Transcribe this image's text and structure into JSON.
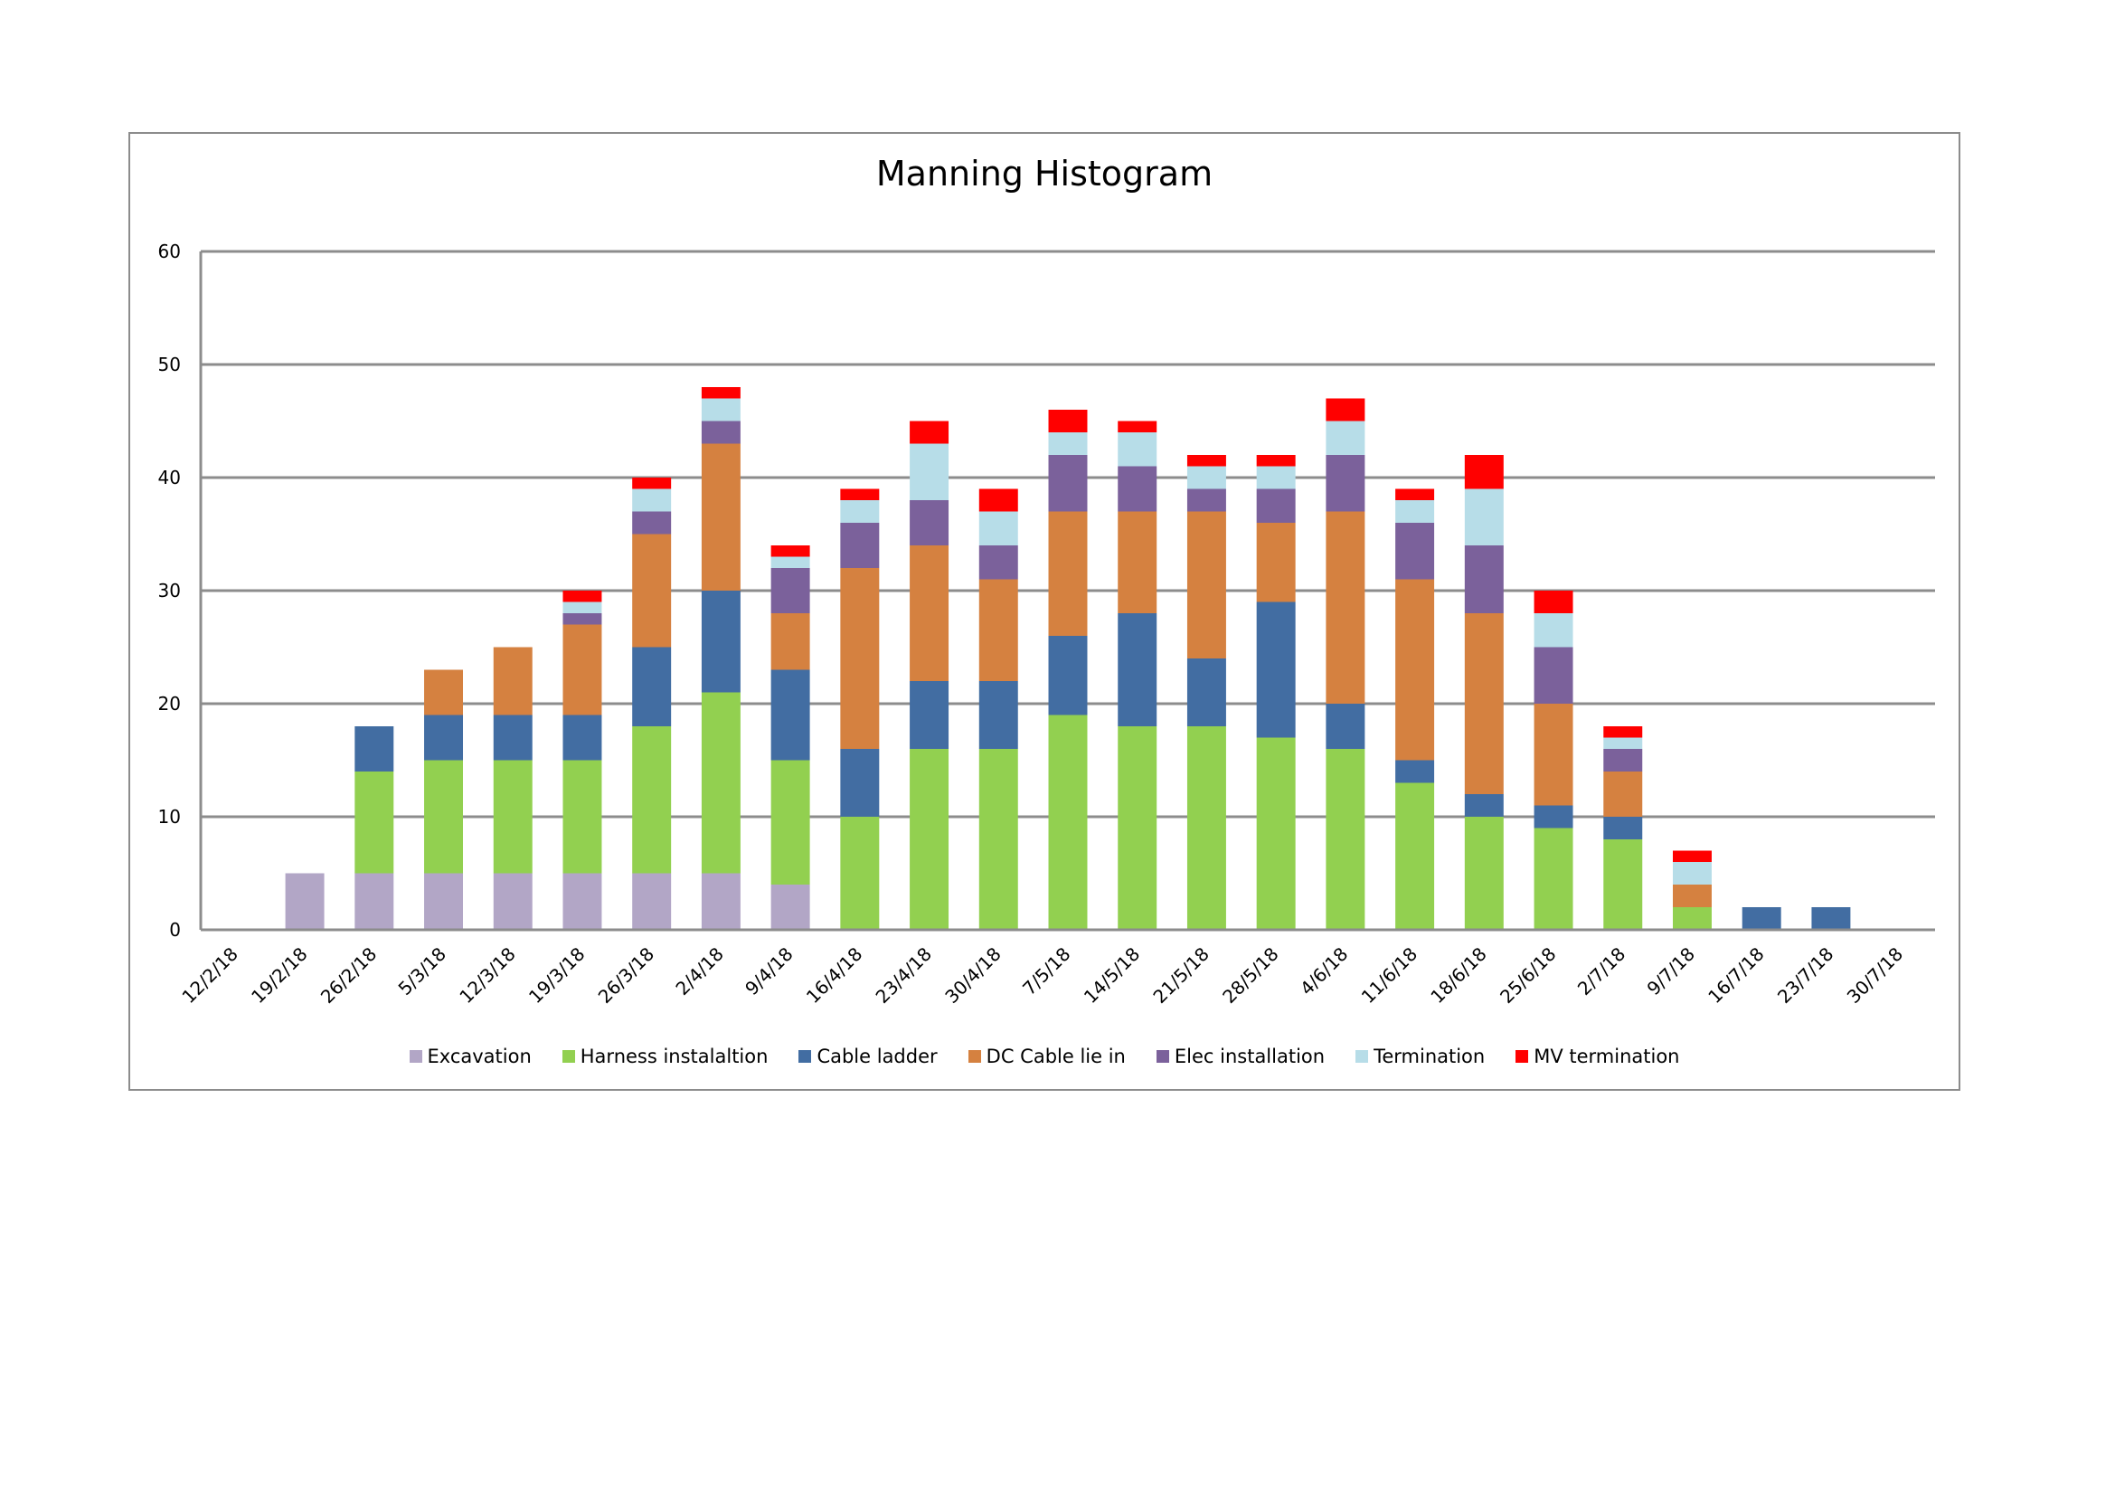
{
  "chart_data": {
    "type": "bar",
    "stacked": true,
    "title": "Manning Histogram",
    "xlabel": "",
    "ylabel": "",
    "ylim": [
      0,
      60
    ],
    "yticks": [
      0,
      10,
      20,
      30,
      40,
      50,
      60
    ],
    "grid": true,
    "legend_position": "bottom",
    "categories": [
      "12/2/18",
      "19/2/18",
      "26/2/18",
      "5/3/18",
      "12/3/18",
      "19/3/18",
      "26/3/18",
      "2/4/18",
      "9/4/18",
      "16/4/18",
      "23/4/18",
      "30/4/18",
      "7/5/18",
      "14/5/18",
      "21/5/18",
      "28/5/18",
      "4/6/18",
      "11/6/18",
      "18/6/18",
      "25/6/18",
      "2/7/18",
      "9/7/18",
      "16/7/18",
      "23/7/18",
      "30/7/18"
    ],
    "series": [
      {
        "name": "Excavation",
        "color": "#b2a6c6",
        "values": [
          0,
          5,
          5,
          5,
          5,
          5,
          5,
          5,
          4,
          0,
          0,
          0,
          0,
          0,
          0,
          0,
          0,
          0,
          0,
          0,
          0,
          0,
          0,
          0,
          0
        ]
      },
      {
        "name": "Harness instalaltion",
        "color": "#92d050",
        "values": [
          0,
          0,
          9,
          10,
          10,
          10,
          13,
          16,
          11,
          10,
          16,
          16,
          19,
          18,
          18,
          17,
          16,
          13,
          10,
          9,
          8,
          2,
          0,
          0,
          0
        ]
      },
      {
        "name": "Cable ladder",
        "color": "#426da2",
        "values": [
          0,
          0,
          4,
          4,
          4,
          4,
          7,
          9,
          8,
          6,
          6,
          6,
          7,
          10,
          6,
          12,
          4,
          2,
          2,
          2,
          2,
          0,
          2,
          2,
          0
        ]
      },
      {
        "name": "DC Cable lie in",
        "color": "#d58140",
        "values": [
          0,
          0,
          0,
          4,
          6,
          8,
          10,
          13,
          5,
          16,
          12,
          9,
          11,
          9,
          13,
          7,
          17,
          16,
          16,
          9,
          4,
          2,
          0,
          0,
          0
        ]
      },
      {
        "name": "Elec installation",
        "color": "#7b619b",
        "values": [
          0,
          0,
          0,
          0,
          0,
          1,
          2,
          2,
          4,
          4,
          4,
          3,
          5,
          4,
          2,
          3,
          5,
          5,
          6,
          5,
          2,
          0,
          0,
          0,
          0
        ]
      },
      {
        "name": "Termination",
        "color": "#b7dde8",
        "values": [
          0,
          0,
          0,
          0,
          0,
          1,
          2,
          2,
          1,
          2,
          5,
          3,
          2,
          3,
          2,
          2,
          3,
          2,
          5,
          3,
          1,
          2,
          0,
          0,
          0
        ]
      },
      {
        "name": "MV termination",
        "color": "#ff0000",
        "values": [
          0,
          0,
          0,
          0,
          0,
          1,
          1,
          1,
          1,
          1,
          2,
          2,
          2,
          1,
          1,
          1,
          2,
          1,
          3,
          2,
          1,
          1,
          0,
          0,
          0
        ]
      }
    ]
  },
  "colors": {
    "gridline": "#8c8c8c",
    "frame": "#8c8c8c"
  }
}
